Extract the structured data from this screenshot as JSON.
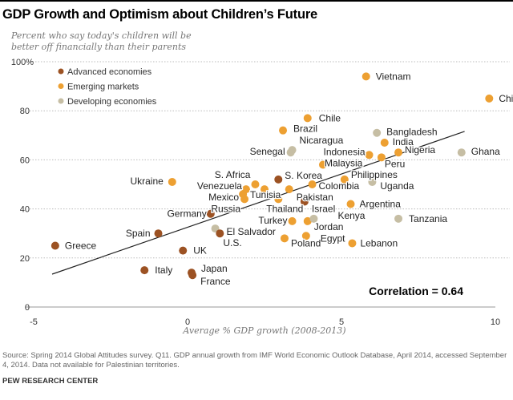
{
  "title": "GDP Growth and Optimism about Children’s Future",
  "source": "Source: Spring 2014 Global Attitudes survey. Q11. GDP annual growth from IMF World Economic Outlook Database, April 2014, accessed September 4, 2014. Data not available for Palestinian territories.",
  "footer": "PEW RESEARCH CENTER",
  "colors": {
    "Advanced economies": "#9c5223",
    "Emerging markets": "#eda032",
    "Developing economies": "#c6bea4"
  },
  "chart_data": {
    "type": "scatter",
    "title": "GDP Growth and Optimism about Children’s Future",
    "ylabel": "Percent who say today's children will be better off financially than their parents",
    "xlabel": "Average % GDP growth (2008-2013)",
    "xlim": [
      -5,
      10
    ],
    "ylim": [
      0,
      100
    ],
    "xticks": [
      "-5",
      "0",
      "5",
      "10"
    ],
    "yticks": [
      "0",
      "20",
      "40",
      "60",
      "80",
      "100%"
    ],
    "grid": "horizontal dotted",
    "legend": {
      "placement": "top-left",
      "entries": [
        "Advanced economies",
        "Emerging markets",
        "Developing economies"
      ]
    },
    "annotation": "Correlation = 0.64",
    "trendline": {
      "x": [
        -4.4,
        9.0
      ],
      "y": [
        13.4,
        71.6
      ]
    },
    "points": [
      {
        "name": "Vietnam",
        "group": "Emerging markets",
        "x": 5.8,
        "y": 94
      },
      {
        "name": "China",
        "group": "Emerging markets",
        "x": 9.8,
        "y": 85
      },
      {
        "name": "Chile",
        "group": "Emerging markets",
        "x": 3.9,
        "y": 77
      },
      {
        "name": "Brazil",
        "group": "Emerging markets",
        "x": 3.1,
        "y": 72
      },
      {
        "name": "Bangladesh",
        "group": "Developing economies",
        "x": 6.15,
        "y": 71
      },
      {
        "name": "India",
        "group": "Emerging markets",
        "x": 6.4,
        "y": 67
      },
      {
        "name": "Nicaragua",
        "group": "Developing economies",
        "x": 3.4,
        "y": 64
      },
      {
        "name": "Senegal",
        "group": "Developing economies",
        "x": 3.35,
        "y": 63
      },
      {
        "name": "Indonesia",
        "group": "Emerging markets",
        "x": 5.9,
        "y": 62
      },
      {
        "name": "Peru",
        "group": "Emerging markets",
        "x": 6.3,
        "y": 61
      },
      {
        "name": "Nigeria",
        "group": "Emerging markets",
        "x": 6.85,
        "y": 63
      },
      {
        "name": "Ghana",
        "group": "Developing economies",
        "x": 8.9,
        "y": 63
      },
      {
        "name": "Malaysia",
        "group": "Emerging markets",
        "x": 4.4,
        "y": 58
      },
      {
        "name": "Ukraine",
        "group": "Emerging markets",
        "x": -0.5,
        "y": 51
      },
      {
        "name": "S. Africa",
        "group": "Emerging markets",
        "x": 2.2,
        "y": 50
      },
      {
        "name": "S. Korea",
        "group": "Advanced economies",
        "x": 2.95,
        "y": 52
      },
      {
        "name": "Philippines",
        "group": "Emerging markets",
        "x": 5.1,
        "y": 52
      },
      {
        "name": "Uganda",
        "group": "Developing economies",
        "x": 6.0,
        "y": 51
      },
      {
        "name": "Venezuela",
        "group": "Emerging markets",
        "x": 1.9,
        "y": 48
      },
      {
        "name": "Tunisia",
        "group": "Emerging markets",
        "x": 2.5,
        "y": 48
      },
      {
        "name": "Colombia",
        "group": "Emerging markets",
        "x": 4.05,
        "y": 50
      },
      {
        "name": "Pakistan",
        "group": "Emerging markets",
        "x": 3.3,
        "y": 48
      },
      {
        "name": "Mexico",
        "group": "Emerging markets",
        "x": 1.8,
        "y": 46
      },
      {
        "name": "Russia",
        "group": "Emerging markets",
        "x": 1.85,
        "y": 44
      },
      {
        "name": "Thailand",
        "group": "Emerging markets",
        "x": 2.95,
        "y": 44
      },
      {
        "name": "Israel",
        "group": "Advanced economies",
        "x": 3.8,
        "y": 43
      },
      {
        "name": "Argentina",
        "group": "Emerging markets",
        "x": 5.3,
        "y": 42
      },
      {
        "name": "Germany",
        "group": "Advanced economies",
        "x": 0.75,
        "y": 38
      },
      {
        "name": "Turkey",
        "group": "Emerging markets",
        "x": 3.4,
        "y": 35
      },
      {
        "name": "Jordan",
        "group": "Emerging markets",
        "x": 3.9,
        "y": 35
      },
      {
        "name": "Kenya",
        "group": "Developing economies",
        "x": 4.1,
        "y": 36
      },
      {
        "name": "Tanzania",
        "group": "Developing economies",
        "x": 6.85,
        "y": 36
      },
      {
        "name": "El Salvador",
        "group": "Developing economies",
        "x": 0.9,
        "y": 32
      },
      {
        "name": "U.S.",
        "group": "Advanced economies",
        "x": 1.05,
        "y": 30
      },
      {
        "name": "Spain",
        "group": "Advanced economies",
        "x": -0.95,
        "y": 30
      },
      {
        "name": "Poland",
        "group": "Emerging markets",
        "x": 3.15,
        "y": 28
      },
      {
        "name": "Egypt",
        "group": "Emerging markets",
        "x": 3.85,
        "y": 29
      },
      {
        "name": "Lebanon",
        "group": "Emerging markets",
        "x": 5.35,
        "y": 26
      },
      {
        "name": "UK",
        "group": "Advanced economies",
        "x": -0.15,
        "y": 23
      },
      {
        "name": "Greece",
        "group": "Advanced economies",
        "x": -4.3,
        "y": 25
      },
      {
        "name": "Italy",
        "group": "Advanced economies",
        "x": -1.4,
        "y": 15
      },
      {
        "name": "Japan",
        "group": "Advanced economies",
        "x": 0.13,
        "y": 14
      },
      {
        "name": "France",
        "group": "Advanced economies",
        "x": 0.16,
        "y": 13
      }
    ]
  }
}
